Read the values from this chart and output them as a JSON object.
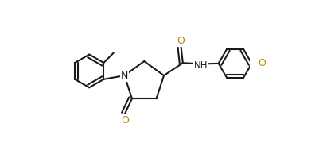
{
  "bg_color": "#ffffff",
  "line_color": "#1a1a1a",
  "N_color": "#1a1a1a",
  "O_color": "#b8860b",
  "bond_lw": 1.5,
  "fig_width": 4.01,
  "fig_height": 2.04,
  "dpi": 100,
  "xlim": [
    0.0,
    1.0
  ],
  "ylim": [
    0.0,
    0.9
  ]
}
